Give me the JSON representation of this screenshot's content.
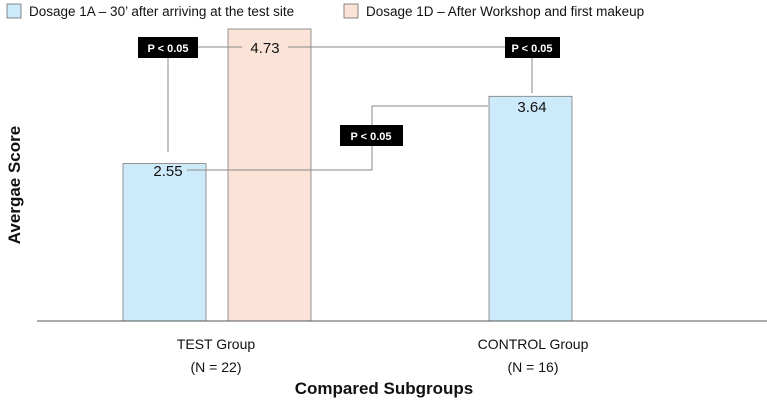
{
  "chart_data": {
    "type": "bar",
    "xlabel": "Compared Subgroups",
    "ylabel": "Avergae Score",
    "ylim": [
      0,
      5.2
    ],
    "grid": false,
    "legend_position": "top",
    "categories": [
      {
        "name": "TEST Group",
        "n": "(N = 22)"
      },
      {
        "name": "CONTROL Group",
        "n": "(N = 16)"
      }
    ],
    "series": [
      {
        "name": "Dosage 1A – 30’ after arriving at the test site",
        "color": "#cdeafb",
        "values": [
          2.55,
          3.64
        ]
      },
      {
        "name": "Dosage 1D – After Workshop and first makeup",
        "color": "#fbe3d7",
        "values": [
          4.73,
          null
        ]
      }
    ],
    "value_labels": [
      "2.55",
      "4.73",
      "3.64"
    ],
    "annotations": [
      {
        "text": "P < 0.05",
        "between": "TEST 1A vs TEST 1D"
      },
      {
        "text": "P < 0.05",
        "between": "TEST 1D vs CONTROL 1A"
      },
      {
        "text": "P < 0.05",
        "between": "TEST 1A vs CONTROL 1A"
      }
    ]
  }
}
